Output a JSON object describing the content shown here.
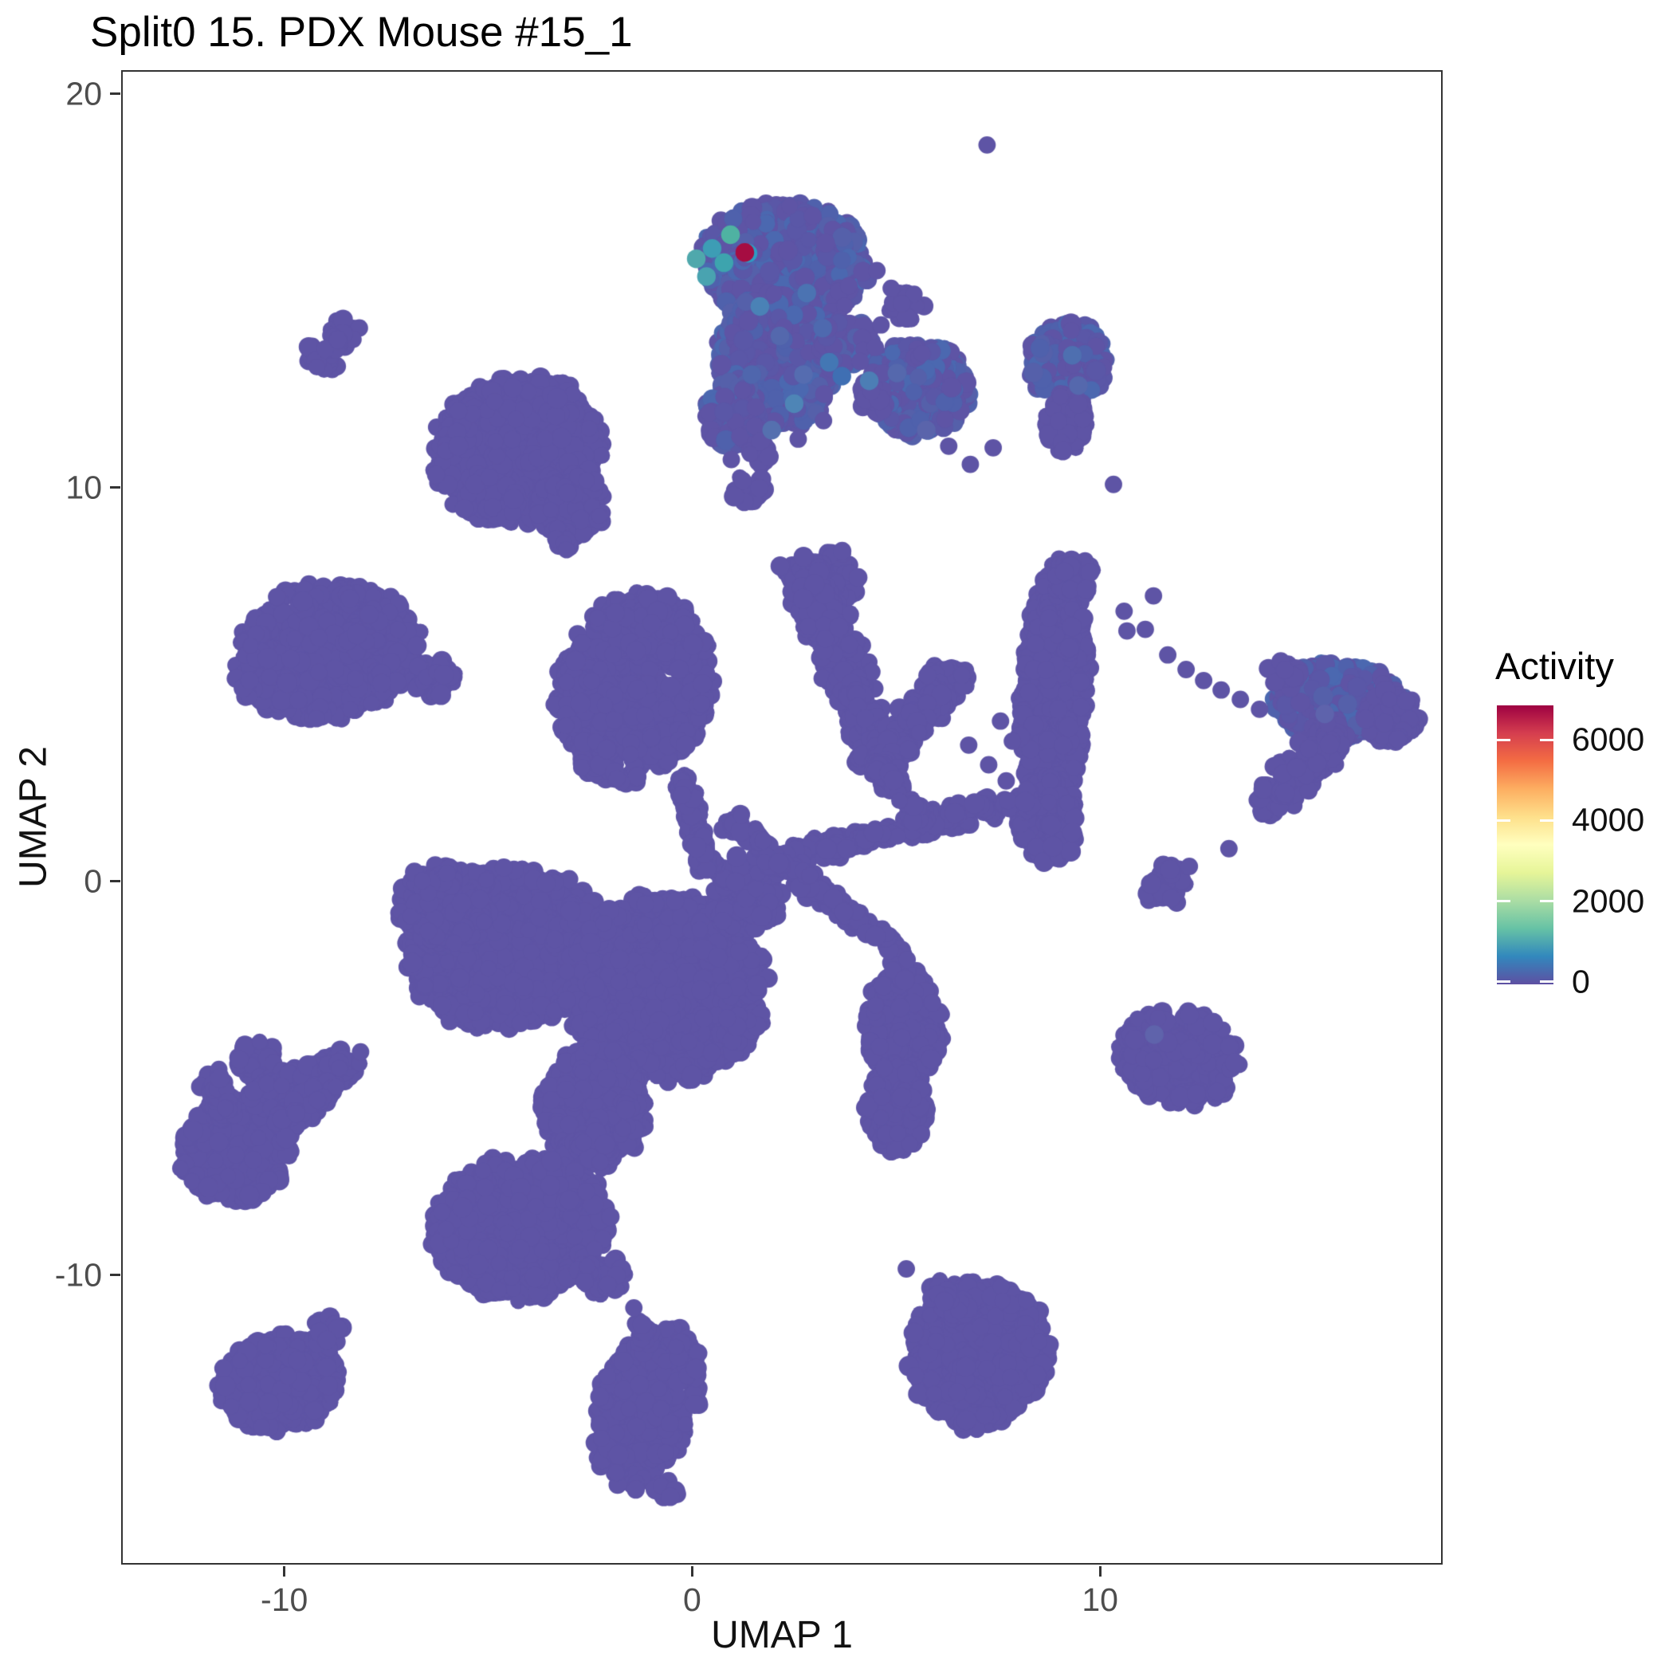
{
  "title": "Split0 15. PDX Mouse #15_1",
  "chart_data": {
    "type": "scatter",
    "title": "Split0 15. PDX Mouse #15_1",
    "xlabel": "UMAP 1",
    "ylabel": "UMAP 2",
    "xlim": [
      -14.0,
      18.4
    ],
    "ylim": [
      -17.35,
      20.6
    ],
    "x_ticks": [
      -10,
      0,
      10
    ],
    "y_ticks": [
      20,
      10,
      0,
      -10
    ],
    "grid": false,
    "legend": {
      "title": "Activity",
      "position": "right",
      "ticks": [
        6000,
        4000,
        2000,
        0
      ],
      "value_min": -60,
      "value_max": 6850,
      "colormap": "Spectral reversed (low=purple, high=red)",
      "colormap_stops": [
        "#5E4FA2",
        "#3288BD",
        "#66C2A5",
        "#ABDDA4",
        "#E6F598",
        "#FFFFBF",
        "#FEE08B",
        "#FDAE61",
        "#F46D43",
        "#D53E4F",
        "#9E0142"
      ]
    },
    "base_point_color": "#5E54A5",
    "mix_point_colors": [
      "#5E54A5",
      "#5A57A7",
      "#5560AA",
      "#4F61AC",
      "#4B68B0"
    ],
    "point_radius_px": 11.5,
    "axis_color": "#333333",
    "tick_label_color": "#4d4d4d",
    "clusters": {
      "blobs": [
        [
          2.29,
          15.71,
          2.05,
          1.52,
          -5,
          900,
          1
        ],
        [
          2.09,
          13.28,
          1.47,
          1.72,
          10,
          650,
          1
        ],
        [
          1.02,
          11.86,
          0.68,
          0.91,
          0,
          150,
          1
        ],
        [
          3.75,
          13.68,
          0.68,
          0.61,
          0,
          120,
          1
        ],
        [
          1.7,
          10.85,
          0.33,
          0.33,
          0,
          12,
          0
        ],
        [
          5.27,
          14.6,
          0.47,
          0.4,
          0,
          16,
          0
        ],
        [
          5.55,
          12.51,
          1.25,
          1.17,
          0,
          430,
          1
        ],
        [
          4.43,
          12.27,
          0.43,
          0.43,
          0,
          30,
          0
        ],
        [
          -9.08,
          13.3,
          0.45,
          0.45,
          0,
          20,
          0
        ],
        [
          -8.55,
          13.97,
          0.4,
          0.4,
          0,
          16,
          0
        ],
        [
          -4.3,
          10.95,
          2.11,
          1.86,
          25,
          800,
          0
        ],
        [
          -2.99,
          9.53,
          0.88,
          0.8,
          0,
          120,
          0
        ],
        [
          1.37,
          10.0,
          0.43,
          0.38,
          0,
          26,
          0
        ],
        [
          9.22,
          13.18,
          0.94,
          1.05,
          0,
          270,
          1
        ],
        [
          9.18,
          11.66,
          0.51,
          0.77,
          0,
          90,
          0
        ],
        [
          -8.98,
          5.83,
          2.3,
          1.72,
          12,
          830,
          0
        ],
        [
          -6.31,
          5.14,
          0.55,
          0.5,
          0,
          40,
          0
        ],
        [
          -1.43,
          4.88,
          1.86,
          2.43,
          -15,
          800,
          0
        ],
        [
          3.36,
          7.71,
          0.74,
          0.74,
          0,
          90,
          0
        ],
        [
          6.25,
          5.08,
          0.51,
          0.51,
          0,
          40,
          0
        ],
        [
          8.87,
          4.78,
          0.82,
          3.34,
          -3,
          720,
          0
        ],
        [
          8.73,
          1.54,
          0.74,
          1.11,
          0,
          230,
          0
        ],
        [
          9.41,
          7.71,
          0.59,
          0.55,
          0,
          40,
          0
        ],
        [
          15.86,
          4.57,
          1.66,
          0.97,
          -8,
          430,
          1
        ],
        [
          17.13,
          4.17,
          0.68,
          0.68,
          0,
          80,
          0
        ],
        [
          14.14,
          1.88,
          0.35,
          0.35,
          0,
          14,
          0
        ],
        [
          14.53,
          5.28,
          0.43,
          0.43,
          0,
          18,
          0
        ],
        [
          11.56,
          -0.08,
          0.59,
          0.55,
          0,
          26,
          0
        ],
        [
          -4.55,
          -1.7,
          2.44,
          2.02,
          10,
          1250,
          0
        ],
        [
          -0.64,
          -2.71,
          2.44,
          2.33,
          -20,
          1500,
          0
        ],
        [
          -6.02,
          -0.59,
          1.17,
          1.05,
          0,
          260,
          0
        ],
        [
          -2.4,
          -5.75,
          1.27,
          1.52,
          0,
          480,
          0
        ],
        [
          -2.5,
          -6.76,
          0.45,
          0.45,
          0,
          30,
          0
        ],
        [
          1.31,
          -0.49,
          0.88,
          0.81,
          0,
          160,
          0
        ],
        [
          5.21,
          -3.72,
          0.94,
          1.52,
          0,
          360,
          0
        ],
        [
          5.02,
          -5.75,
          0.78,
          1.11,
          0,
          230,
          0
        ],
        [
          11.95,
          -4.43,
          1.47,
          1.21,
          -15,
          330,
          0
        ],
        [
          -11.19,
          -6.86,
          1.37,
          1.27,
          20,
          380,
          0
        ],
        [
          -10.7,
          -4.53,
          0.51,
          0.51,
          0,
          40,
          0
        ],
        [
          -4.22,
          -8.79,
          2.19,
          1.82,
          8,
          700,
          0
        ],
        [
          -2.21,
          -10.0,
          0.59,
          0.55,
          0,
          50,
          0
        ],
        [
          -1.09,
          -13.34,
          1.21,
          2.13,
          -18,
          430,
          0
        ],
        [
          -0.64,
          -15.47,
          0.3,
          0.3,
          0,
          10,
          0
        ],
        [
          -10.12,
          -12.73,
          1.47,
          1.21,
          15,
          330,
          0
        ],
        [
          -8.98,
          -11.46,
          0.43,
          0.43,
          0,
          30,
          0
        ],
        [
          7.03,
          -12.02,
          1.72,
          1.86,
          -10,
          560,
          0
        ]
      ],
      "trails": [
        [
          -9.0,
          13.4,
          -8.6,
          13.9,
          0.5,
          14
        ],
        [
          -3.3,
          9.0,
          -3.1,
          8.35,
          0.35,
          24
        ],
        [
          -0.2,
          2.65,
          0.08,
          1.17,
          0.51,
          60
        ],
        [
          2.73,
          8.06,
          3.91,
          4.98,
          1.25,
          300
        ],
        [
          3.91,
          4.98,
          4.53,
          3.0,
          1.09,
          160
        ],
        [
          4.53,
          3.0,
          6.05,
          4.82,
          1.05,
          170
        ],
        [
          15.86,
          3.87,
          14.3,
          2.15,
          1.07,
          230
        ],
        [
          4.92,
          -1.5,
          5.21,
          -2.51,
          0.4,
          30
        ],
        [
          -10.7,
          -5.55,
          -8.75,
          -4.74,
          0.79,
          170
        ],
        [
          -10.12,
          -6.36,
          -8.36,
          -4.53,
          0.71,
          150
        ],
        [
          -11.84,
          -4.94,
          -11.39,
          -5.95,
          0.59,
          60
        ],
        [
          -1.33,
          -11.11,
          -1.09,
          -11.76,
          0.4,
          26
        ],
        [
          5.8,
          -10.2,
          6.68,
          -11.01,
          0.59,
          50
        ],
        [
          0.59,
          0.16,
          8.28,
          2.11,
          0.66,
          260
        ],
        [
          0.92,
          1.54,
          4.69,
          -1.54,
          0.59,
          160
        ],
        [
          4.39,
          2.92,
          5.74,
          1.58,
          0.55,
          70
        ],
        [
          0.08,
          1.17,
          0.43,
          0.28,
          0.47,
          40
        ]
      ],
      "dots": [
        [
          7.23,
          18.7
        ],
        [
          10.33,
          10.08
        ],
        [
          9.1,
          10.95
        ],
        [
          4.12,
          13.2
        ],
        [
          4.49,
          13.56
        ],
        [
          4.67,
          12.91
        ],
        [
          4.39,
          12.45
        ],
        [
          3.22,
          11.7
        ],
        [
          2.6,
          11.23
        ],
        [
          4.53,
          15.51
        ],
        [
          4.88,
          15.06
        ],
        [
          4.63,
          14.13
        ],
        [
          11.31,
          7.25
        ],
        [
          10.59,
          6.86
        ],
        [
          11.11,
          6.4
        ],
        [
          10.66,
          6.36
        ],
        [
          11.66,
          5.75
        ],
        [
          12.11,
          5.38
        ],
        [
          12.54,
          5.1
        ],
        [
          12.97,
          4.86
        ],
        [
          13.44,
          4.62
        ],
        [
          13.91,
          4.37
        ],
        [
          13.16,
          0.83
        ],
        [
          12.19,
          0.38
        ],
        [
          6.78,
          3.46
        ],
        [
          7.27,
          2.96
        ],
        [
          7.7,
          2.55
        ],
        [
          7.85,
          3.56
        ],
        [
          7.56,
          4.07
        ],
        [
          6.29,
          11.05
        ],
        [
          6.82,
          10.59
        ],
        [
          7.38,
          11.01
        ],
        [
          1.17,
          11.3
        ],
        [
          0.96,
          10.71
        ],
        [
          -2.07,
          -10.24
        ],
        [
          -1.43,
          -10.83
        ],
        [
          5.25,
          -9.84
        ],
        [
          5.47,
          -12.55
        ],
        [
          -8.13,
          -4.33
        ]
      ],
      "highlight_points": [
        {
          "x": 0.49,
          "y": 16.07,
          "color": "#3D9DB5"
        },
        {
          "x": 0.94,
          "y": 16.42,
          "color": "#4FB2A2"
        },
        {
          "x": 0.78,
          "y": 15.71,
          "color": "#3DA4AE"
        },
        {
          "x": 1.37,
          "y": 15.95,
          "color": "#2F9BC3"
        },
        {
          "x": 0.35,
          "y": 15.36,
          "color": "#49A3B0"
        },
        {
          "x": 0.1,
          "y": 15.81,
          "color": "#4FA8AC"
        },
        {
          "x": 2.81,
          "y": 14.94,
          "color": "#4B73B2"
        },
        {
          "x": 3.36,
          "y": 13.18,
          "color": "#4377B4"
        },
        {
          "x": 3.67,
          "y": 12.83,
          "color": "#3F6FB3"
        },
        {
          "x": 2.5,
          "y": 12.13,
          "color": "#4E85B6"
        },
        {
          "x": 4.34,
          "y": 12.71,
          "color": "#4C7EB5"
        },
        {
          "x": 2.15,
          "y": 13.85,
          "color": "#5468AD"
        },
        {
          "x": 3.2,
          "y": 14.05,
          "color": "#4E69AF"
        },
        {
          "x": 1.66,
          "y": 14.6,
          "color": "#4A82B6"
        },
        {
          "x": 2.73,
          "y": 12.87,
          "color": "#556CB0"
        },
        {
          "x": 1.95,
          "y": 11.46,
          "color": "#5570AF"
        },
        {
          "x": 1.46,
          "y": 12.87,
          "color": "#4F66AD"
        },
        {
          "x": 5.02,
          "y": 12.91,
          "color": "#5568AD"
        },
        {
          "x": 5.74,
          "y": 11.46,
          "color": "#5A64AB"
        },
        {
          "x": 9.32,
          "y": 13.36,
          "color": "#4E6FB0"
        },
        {
          "x": 9.47,
          "y": 12.59,
          "color": "#5568AD"
        },
        {
          "x": 15.51,
          "y": 4.25,
          "color": "#5E63AC"
        },
        {
          "x": 11.33,
          "y": -3.89,
          "color": "#5F63AB"
        },
        {
          "x": 1.29,
          "y": 15.97,
          "color": "#A60D42"
        }
      ]
    }
  }
}
